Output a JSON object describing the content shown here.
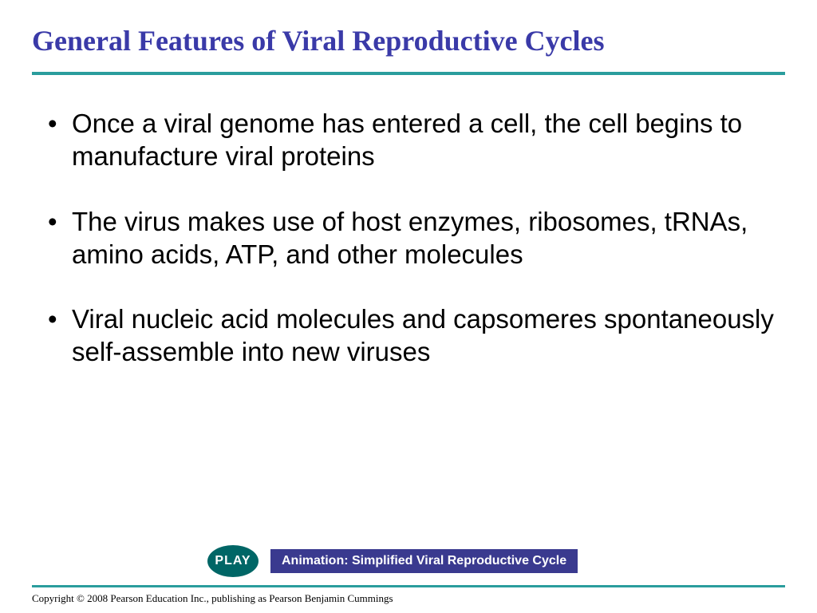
{
  "slide": {
    "title": "General Features of Viral Reproductive Cycles",
    "title_color": "#3a3aa8",
    "title_fontsize": 36,
    "title_font": "Times New Roman",
    "divider_color": "#2a9d9d",
    "background_color": "#ffffff",
    "bullets": [
      {
        "text": "Once a viral genome has entered a cell, the cell begins to manufacture viral proteins"
      },
      {
        "text": "The virus makes use of host enzymes, ribosomes, tRNAs, amino acids, ATP, and other molecules"
      },
      {
        "text": "Viral nucleic acid molecules and capsomeres spontaneously self-assemble into new viruses"
      }
    ],
    "bullet_fontsize": 33,
    "bullet_color": "#000000",
    "play_button": {
      "label": "PLAY",
      "bg_color": "#006666",
      "text_color": "#ffffff"
    },
    "animation_box": {
      "label": "Animation: Simplified Viral Reproductive Cycle",
      "bg_color": "#3a3a8f",
      "text_color": "#ffffff"
    },
    "copyright": "Copyright © 2008 Pearson Education Inc., publishing  as Pearson Benjamin Cummings"
  }
}
